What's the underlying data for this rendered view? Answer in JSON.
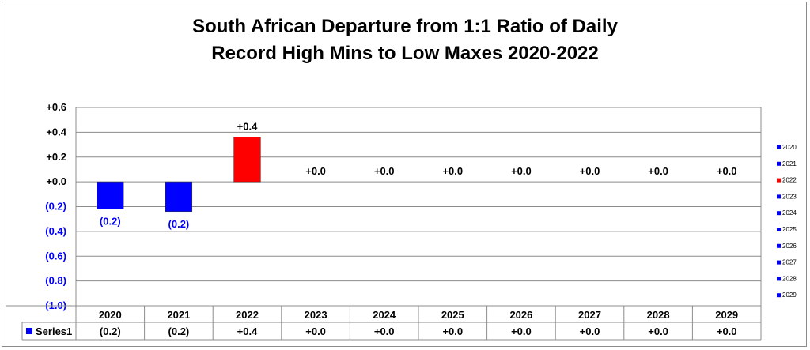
{
  "chart_data": {
    "type": "bar",
    "title_line1": "South African Departure from 1:1 Ratio of Daily",
    "title_line2": "Record High Mins to Low Maxes 2020-2022",
    "categories": [
      "2020",
      "2021",
      "2022",
      "2023",
      "2024",
      "2025",
      "2026",
      "2027",
      "2028",
      "2029"
    ],
    "series": [
      {
        "name": "Series1",
        "values": [
          -0.22,
          -0.24,
          0.36,
          0,
          0,
          0,
          0,
          0,
          0,
          0
        ],
        "labels": [
          "(0.2)",
          "(0.2)",
          "+0.4",
          "+0.0",
          "+0.0",
          "+0.0",
          "+0.0",
          "+0.0",
          "+0.0",
          "+0.0"
        ],
        "colors": [
          "#0000ff",
          "#0000ff",
          "#ff0000",
          "#0000ff",
          "#0000ff",
          "#0000ff",
          "#0000ff",
          "#0000ff",
          "#0000ff",
          "#0000ff"
        ]
      }
    ],
    "ylim": [
      -1.0,
      0.6
    ],
    "yticks": [
      0.6,
      0.4,
      0.2,
      0.0,
      -0.2,
      -0.4,
      -0.6,
      -0.8,
      -1.0
    ],
    "ytick_labels": [
      "+0.6",
      "+0.4",
      "+0.2",
      "+0.0",
      "(0.2)",
      "(0.4)",
      "(0.6)",
      "(0.8)",
      "(1.0)"
    ],
    "grid": true,
    "data_table": true,
    "legend_position": "right",
    "legend": [
      "2020",
      "2021",
      "2022",
      "2023",
      "2024",
      "2025",
      "2026",
      "2027",
      "2028",
      "2029"
    ],
    "colors": {
      "positive": "#ff0000",
      "negative": "#0000ff",
      "tick_positive": "#000000",
      "tick_negative": "#0000ff"
    }
  }
}
